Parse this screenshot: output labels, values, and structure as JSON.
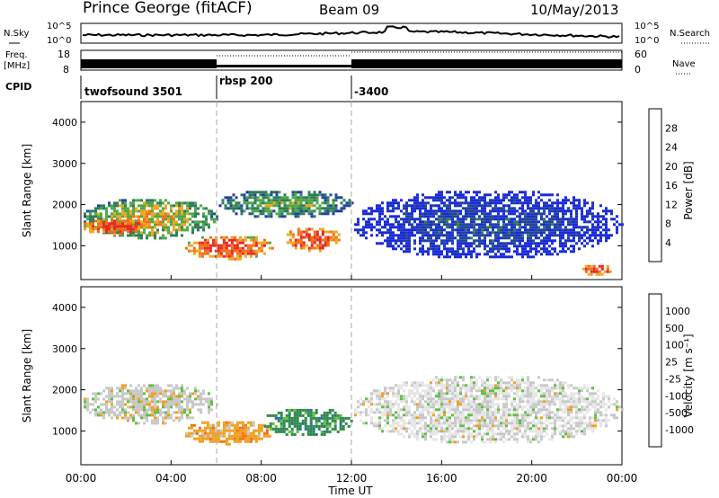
{
  "header": {
    "station": "Prince George (fitACF)",
    "beam": "Beam 09",
    "date": "10/May/2013"
  },
  "noise_panel": {
    "left_label": "N.Sky",
    "right_label": "N.Search",
    "left_ticks": [
      "10^5",
      "10^0"
    ],
    "right_ticks": [
      "10^5",
      "10^0"
    ]
  },
  "freq_panel": {
    "label_top": "Freq.",
    "label_bottom": "[MHz]",
    "left_ticks": [
      "18",
      "8"
    ],
    "right_ticks": [
      "60",
      "0"
    ],
    "right_label": "Nave"
  },
  "cpid_panel": {
    "label": "CPID",
    "segments": [
      {
        "label": "twofsound 3501",
        "start_hour": 0
      },
      {
        "label": "rbsp 200",
        "start_hour": 6
      },
      {
        "label": "-3400",
        "start_hour": 12
      }
    ]
  },
  "time_axis": {
    "label": "Time UT",
    "ticks": [
      "00:00",
      "04:00",
      "08:00",
      "12:00",
      "16:00",
      "20:00",
      "00:00"
    ]
  },
  "power_panel": {
    "ylabel": "Slant Range [km]",
    "yticks": [
      "1000",
      "2000",
      "3000",
      "4000"
    ],
    "colorbar_label": "Power [dB]",
    "colorbar_ticks": [
      "4",
      "8",
      "12",
      "16",
      "20",
      "24",
      "28"
    ],
    "colors": [
      "#1a2bd6",
      "#22469c",
      "#2f7c5c",
      "#4fa84a",
      "#f0a620",
      "#f07018",
      "#e82820"
    ]
  },
  "velocity_panel": {
    "ylabel": "Slant Range [km]",
    "yticks": [
      "1000",
      "2000",
      "3000",
      "4000"
    ],
    "colorbar_label": "Velocity [m s⁻¹]",
    "colorbar_ticks": [
      "1000",
      "500",
      "100",
      "25",
      "-25",
      "-100",
      "-500",
      "-1000"
    ],
    "colors": [
      "#1a2bd6",
      "#2c6f9e",
      "#2f8a4a",
      "#60c040",
      "#c8c8c8",
      "#f0a020",
      "#f07018",
      "#e82820"
    ]
  },
  "chart_data": {
    "type": "heatmap",
    "x_unit": "hour UT",
    "y_unit": "km",
    "xlim": [
      0,
      24
    ],
    "ylim": [
      180,
      4500
    ],
    "power_blobs": [
      {
        "t0": 0,
        "t1": 6,
        "r0": 1200,
        "r1": 2200,
        "level": 4
      },
      {
        "t0": 0,
        "t1": 3,
        "r0": 1300,
        "r1": 1700,
        "level": 6
      },
      {
        "t0": 4.5,
        "t1": 8.5,
        "r0": 700,
        "r1": 1300,
        "level": 6
      },
      {
        "t0": 9,
        "t1": 11.5,
        "r0": 900,
        "r1": 1500,
        "level": 6
      },
      {
        "t0": 6,
        "t1": 12,
        "r0": 1700,
        "r1": 2400,
        "level": 3
      },
      {
        "t0": 12,
        "t1": 24,
        "r0": 700,
        "r1": 2400,
        "level": 1
      },
      {
        "t0": 22,
        "t1": 23.5,
        "r0": 300,
        "r1": 600,
        "level": 6
      }
    ],
    "velocity_blobs": [
      {
        "t0": 0,
        "t1": 6,
        "r0": 1200,
        "r1": 2200,
        "class": "-25..25"
      },
      {
        "t0": 4.5,
        "t1": 8.5,
        "r0": 700,
        "r1": 1300,
        "class": "-100"
      },
      {
        "t0": 8,
        "t1": 12,
        "r0": 900,
        "r1": 1600,
        "class": "100"
      },
      {
        "t0": 12,
        "t1": 24,
        "r0": 700,
        "r1": 2400,
        "class": "-25..25"
      }
    ]
  }
}
